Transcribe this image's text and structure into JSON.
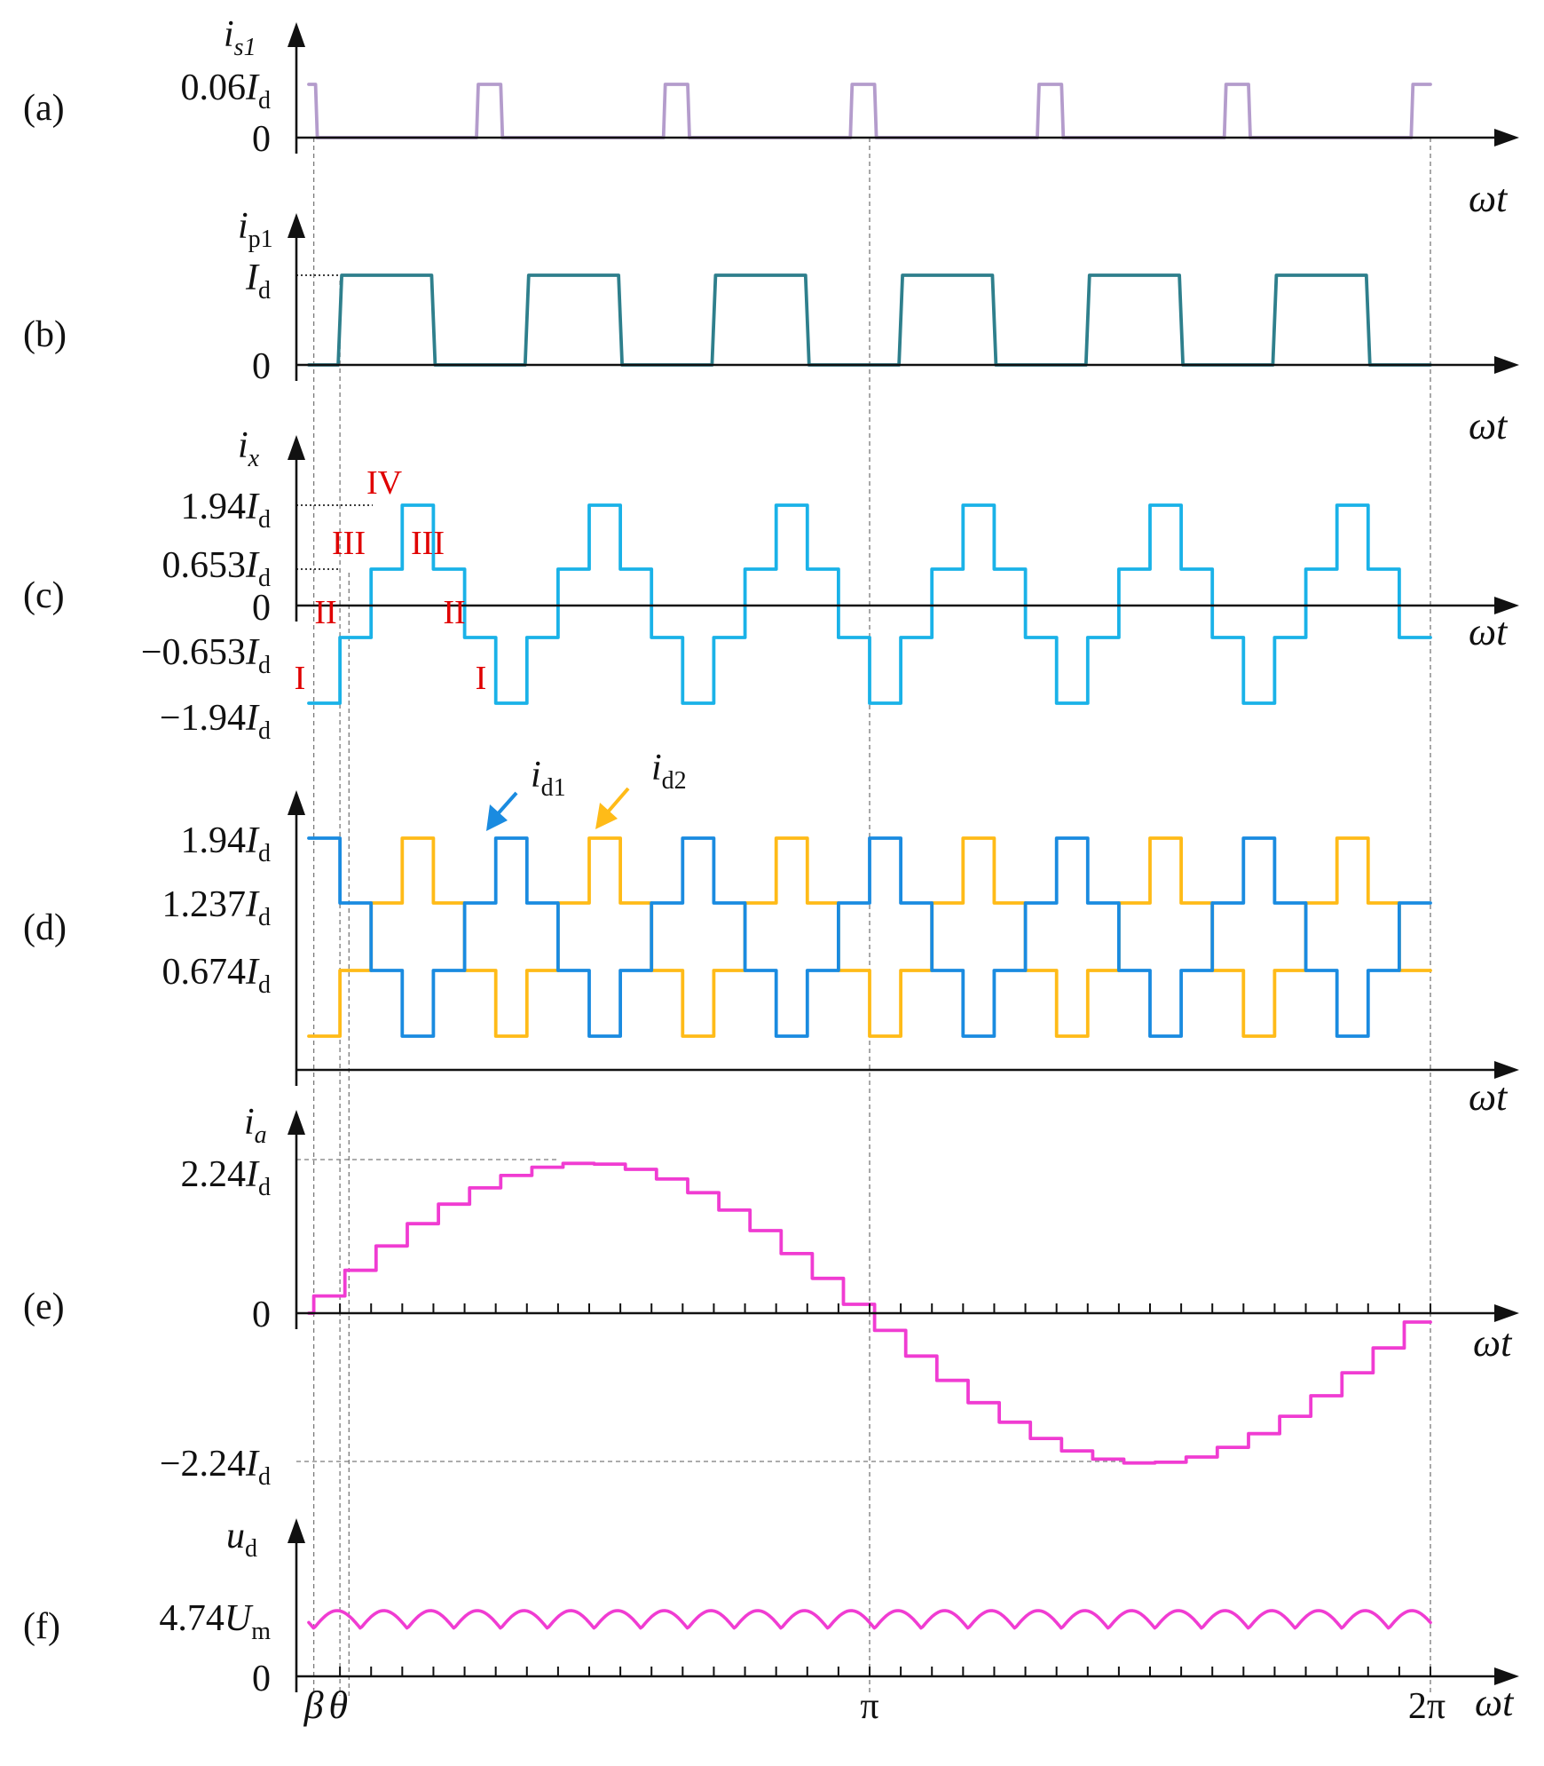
{
  "colors": {
    "axis": "#111111",
    "guide": "#7a7a7a",
    "is1": "#b49ccc",
    "ip1": "#2e7f8c",
    "ix": "#1ab2e8",
    "id1": "#1a8be0",
    "id2": "#ffbb18",
    "ia": "#f03cd2",
    "ud": "#f03cd2",
    "region": "#e00000",
    "background": "#ffffff"
  },
  "x_axis": {
    "unit": "ωt",
    "tick_labels": {
      "beta": "β",
      "theta": "θ",
      "pi": "π",
      "two_pi": "2π"
    },
    "beta_deg": 1.6,
    "theta_deg": 12.9,
    "segments_per_period": 36
  },
  "panels": [
    {
      "id": "a",
      "tag": "(a)",
      "xlabel": "ωt",
      "ylabel": {
        "sym": "i",
        "sub": "s1",
        "sym_italic": true,
        "sub_italic": true
      },
      "yticks": [
        {
          "num": "0.06",
          "sym": "I",
          "sub": "d"
        },
        {
          "num": "0",
          "sym": "",
          "sub": ""
        }
      ]
    },
    {
      "id": "b",
      "tag": "(b)",
      "xlabel": "ωt",
      "ylabel": {
        "sym": "i",
        "sub": "p1",
        "sym_italic": true,
        "sub_italic": false
      },
      "yticks": [
        {
          "num": "",
          "sym": "I",
          "sub": "d"
        },
        {
          "num": "0",
          "sym": "",
          "sub": ""
        }
      ]
    },
    {
      "id": "c",
      "tag": "(c)",
      "xlabel": "ωt",
      "ylabel": {
        "sym": "i",
        "sub": "x",
        "sym_italic": true,
        "sub_italic": true
      },
      "yticks": [
        {
          "num": "1.94",
          "sym": "I",
          "sub": "d"
        },
        {
          "num": "0.653",
          "sym": "I",
          "sub": "d"
        },
        {
          "num": "0",
          "sym": "",
          "sub": ""
        },
        {
          "num": "−0.653",
          "sym": "I",
          "sub": "d"
        },
        {
          "num": "−1.94",
          "sym": "I",
          "sub": "d"
        }
      ],
      "regions": [
        "IV",
        "III",
        "III",
        "II",
        "II",
        "I",
        "I"
      ]
    },
    {
      "id": "d",
      "tag": "(d)",
      "xlabel": "ωt",
      "yticks": [
        {
          "num": "1.94",
          "sym": "I",
          "sub": "d"
        },
        {
          "num": "1.237",
          "sym": "I",
          "sub": "d"
        },
        {
          "num": "0.674",
          "sym": "I",
          "sub": "d"
        }
      ],
      "series_labels": [
        {
          "sym": "i",
          "sub": "d1"
        },
        {
          "sym": "i",
          "sub": "d2"
        }
      ]
    },
    {
      "id": "e",
      "tag": "(e)",
      "xlabel": "ωt",
      "ylabel": {
        "sym": "i",
        "sub": "a",
        "sym_italic": true,
        "sub_italic": true
      },
      "yticks": [
        {
          "num": "2.24",
          "sym": "I",
          "sub": "d"
        },
        {
          "num": "0",
          "sym": "",
          "sub": ""
        },
        {
          "num": "−2.24",
          "sym": "I",
          "sub": "d"
        }
      ]
    },
    {
      "id": "f",
      "tag": "(f)",
      "xlabel": "ωt",
      "ylabel": {
        "sym": "u",
        "sub": "d",
        "sym_italic": true,
        "sub_italic": false
      },
      "yticks": [
        {
          "num": "4.74",
          "sym": "U",
          "sub": "m"
        },
        {
          "num": "0",
          "sym": "",
          "sub": ""
        }
      ]
    }
  ]
}
